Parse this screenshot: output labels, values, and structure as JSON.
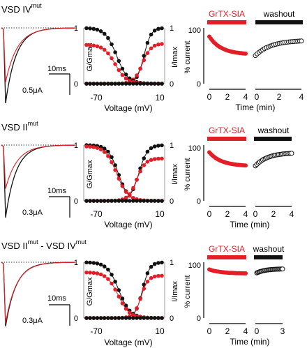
{
  "colors": {
    "black": "#111111",
    "red": "#e41e26",
    "grey": "#9a9a9a"
  },
  "rows": [
    {
      "title_main": "VSD IV",
      "title_sup": "mut",
      "scale_time": "10ms",
      "scale_current": "0.5μA",
      "mid": {
        "ylabel_left": "G/Gmax",
        "ylabel_right": "I/Imax",
        "xlabel": "Voltage (mV)",
        "xtick_labels": [
          "-70",
          "10"
        ],
        "ytick_left": [
          "0",
          "1"
        ],
        "ytick_right": [
          "0",
          "1"
        ]
      },
      "right": {
        "ylabel": "% current",
        "xlabel": "Time (min)",
        "ytick_labels": [
          "0",
          "100"
        ],
        "xtick_labels_a": [
          "0",
          "2",
          "4"
        ],
        "xtick_labels_b": [
          "0",
          "2",
          "4"
        ],
        "bar_label_a": "GrTX-SIA",
        "bar_label_b": "washout"
      }
    },
    {
      "title_main": "VSD II",
      "title_sup": "mut",
      "scale_time": "10ms",
      "scale_current": "0.3μA",
      "mid": {
        "ylabel_left": "G/Gmax",
        "ylabel_right": "I/Imax",
        "xlabel": "Voltage (mV)",
        "xtick_labels": [
          "-70",
          "10"
        ],
        "ytick_left": [
          "0",
          "1"
        ],
        "ytick_right": [
          "0",
          "1"
        ]
      },
      "right": {
        "ylabel": "% current",
        "xlabel": "Time (min)",
        "ytick_labels": [
          "0",
          "100"
        ],
        "xtick_labels_a": [
          "0",
          "2",
          "4"
        ],
        "xtick_labels_b": [
          "0",
          "2",
          "4"
        ],
        "bar_label_a": "GrTX-SIA",
        "bar_label_b": "washout"
      }
    },
    {
      "title_main": "VSD II",
      "title_sup": "mut",
      "title_mid": " - VSD IV",
      "title_sup2": "mut",
      "scale_time": "10ms",
      "scale_current": "0.3μA",
      "mid": {
        "ylabel_left": "G/Gmax",
        "ylabel_right": "I/Imax",
        "xlabel": "Voltage (mV)",
        "xtick_labels": [
          "-70",
          "10"
        ],
        "ytick_left": [
          "0",
          "1"
        ],
        "ytick_right": [
          "0",
          "1"
        ]
      },
      "right": {
        "ylabel": "% current",
        "xlabel": "Time (min)",
        "ytick_labels": [
          "0",
          "100"
        ],
        "xtick_labels_a": [
          "0",
          "2",
          "4"
        ],
        "xtick_labels_b": [
          "0",
          "3"
        ],
        "bar_label_a": "GrTX-SIA",
        "bar_label_b": "washout"
      }
    }
  ],
  "chart_data": [
    {
      "type": "line",
      "panel": "row1-traces",
      "series": [
        {
          "color": "#111111",
          "peak": -1.0,
          "decay_ms": 2.5
        },
        {
          "color": "#e41e26",
          "peak": -0.72,
          "decay_ms": 2.8
        }
      ]
    },
    {
      "type": "scatter",
      "panel": "row1-GV-inactivation",
      "x_range": [
        -90,
        15
      ],
      "y_range": [
        0,
        1
      ],
      "series": [
        {
          "color": "#111111",
          "kind": "activation",
          "v_half": -10,
          "slope": 5,
          "plateau": 1.0
        },
        {
          "color": "#e41e26",
          "kind": "activation",
          "v_half": -12,
          "slope": 6,
          "plateau": 0.72
        },
        {
          "color": "#111111",
          "kind": "inactivation",
          "v_half": -48,
          "slope": 8,
          "plateau": 1.0
        },
        {
          "color": "#e41e26",
          "kind": "inactivation",
          "v_half": -50,
          "slope": 8,
          "plateau": 0.7
        },
        {
          "color": "#111111",
          "kind": "zero",
          "plateau": 0
        }
      ]
    },
    {
      "type": "scatter",
      "panel": "row1-timecourse",
      "y_range": [
        0,
        115
      ],
      "toxin": {
        "x_range": [
          0,
          4
        ],
        "color": "#e41e26",
        "start": 97,
        "end": 62
      },
      "washout": {
        "x_range": [
          0,
          4
        ],
        "color": "#111111",
        "start": 58,
        "end": 88
      }
    },
    {
      "type": "line",
      "panel": "row2-traces",
      "series": [
        {
          "color": "#111111",
          "peak": -1.0,
          "decay_ms": 2.5
        },
        {
          "color": "#e41e26",
          "peak": -0.6,
          "decay_ms": 2.8
        }
      ]
    },
    {
      "type": "scatter",
      "panel": "row2-GV-inactivation",
      "x_range": [
        -90,
        15
      ],
      "y_range": [
        0,
        1
      ],
      "series": [
        {
          "color": "#111111",
          "kind": "activation",
          "v_half": -17,
          "slope": 6,
          "plateau": 1.0
        },
        {
          "color": "#e41e26",
          "kind": "activation",
          "v_half": -20,
          "slope": 6,
          "plateau": 0.76
        },
        {
          "color": "#111111",
          "kind": "inactivation",
          "v_half": -46,
          "slope": 7,
          "plateau": 1.0
        },
        {
          "color": "#e41e26",
          "kind": "inactivation",
          "v_half": -48,
          "slope": 8,
          "plateau": 0.98
        },
        {
          "color": "#111111",
          "kind": "zero",
          "plateau": 0
        }
      ]
    },
    {
      "type": "scatter",
      "panel": "row2-timecourse",
      "y_range": [
        0,
        115
      ],
      "toxin": {
        "x_range": [
          0,
          4
        ],
        "color": "#e41e26",
        "start": 100,
        "end": 73
      },
      "washout": {
        "x_range": [
          0,
          4
        ],
        "color": "#111111",
        "start": 72,
        "end": 98
      }
    },
    {
      "type": "line",
      "panel": "row3-traces",
      "series": [
        {
          "color": "#111111",
          "peak": -1.0,
          "decay_ms": 2.5
        },
        {
          "color": "#e41e26",
          "peak": -0.95,
          "decay_ms": 2.6
        }
      ]
    },
    {
      "type": "scatter",
      "panel": "row3-GV-inactivation",
      "x_range": [
        -90,
        15
      ],
      "y_range": [
        0,
        1
      ],
      "series": [
        {
          "color": "#111111",
          "kind": "activation",
          "v_half": -12,
          "slope": 5,
          "plateau": 1.0
        },
        {
          "color": "#e41e26",
          "kind": "activation",
          "v_half": -14,
          "slope": 5,
          "plateau": 0.76
        },
        {
          "color": "#111111",
          "kind": "inactivation",
          "v_half": -45,
          "slope": 8,
          "plateau": 1.0
        },
        {
          "color": "#e41e26",
          "kind": "inactivation",
          "v_half": -46,
          "slope": 8,
          "plateau": 0.82
        },
        {
          "color": "#111111",
          "kind": "zero",
          "plateau": 0
        }
      ]
    },
    {
      "type": "scatter",
      "panel": "row3-timecourse",
      "y_range": [
        0,
        115
      ],
      "toxin": {
        "x_range": [
          0,
          4
        ],
        "color": "#e41e26",
        "start": 100,
        "end": 92
      },
      "washout": {
        "x_range": [
          0,
          3
        ],
        "color": "#111111",
        "start": 93,
        "end": 101
      }
    }
  ]
}
